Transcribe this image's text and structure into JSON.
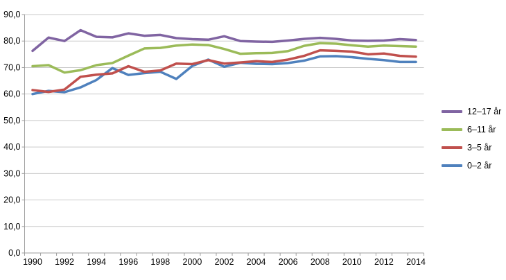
{
  "chart_data": {
    "type": "line",
    "title": "",
    "xlabel": "",
    "ylabel": "",
    "x": [
      1990,
      1991,
      1992,
      1993,
      1994,
      1995,
      1996,
      1997,
      1998,
      1999,
      2000,
      2001,
      2002,
      2003,
      2004,
      2005,
      2006,
      2007,
      2008,
      2009,
      2010,
      2011,
      2012,
      2013,
      2014
    ],
    "x_tick_labels": [
      "1990",
      "1992",
      "1994",
      "1996",
      "1998",
      "2000",
      "2002",
      "2004",
      "2006",
      "2008",
      "2010",
      "2012",
      "2014"
    ],
    "y_tick_labels": [
      "90,0",
      "80,0",
      "70,0",
      "60,0",
      "50,0",
      "40,0",
      "30,0",
      "20,0",
      "10,0",
      "0,0"
    ],
    "ylim": [
      0,
      90
    ],
    "y_tick_step": 10,
    "grid": "horizontal",
    "legend_position": "right",
    "colors": {
      "gridline": "#C9C9C9",
      "axis": "#9E9E9E",
      "tick_text": "#000000",
      "background": "#FFFFFF"
    },
    "series": [
      {
        "name": "12–17 år",
        "color": "#8064A2",
        "values": [
          76.3,
          81.3,
          80.0,
          84.1,
          81.6,
          81.4,
          82.9,
          82.0,
          82.3,
          81.1,
          80.7,
          80.5,
          81.8,
          80.0,
          79.8,
          79.7,
          80.2,
          80.8,
          81.2,
          80.8,
          80.2,
          80.1,
          80.2,
          80.7,
          80.4
        ]
      },
      {
        "name": "6–11 år",
        "color": "#9BBB59",
        "values": [
          70.5,
          70.9,
          68.1,
          69.0,
          70.9,
          71.7,
          74.5,
          77.2,
          77.4,
          78.3,
          78.7,
          78.5,
          77.0,
          75.2,
          75.4,
          75.5,
          76.2,
          78.2,
          79.2,
          79.0,
          78.4,
          77.9,
          78.3,
          78.1,
          77.9
        ]
      },
      {
        "name": "3–5 år",
        "color": "#C0504D",
        "values": [
          61.5,
          60.8,
          61.7,
          66.5,
          67.3,
          67.8,
          70.5,
          68.4,
          68.9,
          71.5,
          71.3,
          72.8,
          71.5,
          71.9,
          72.4,
          72.1,
          73.0,
          74.4,
          76.5,
          76.3,
          76.0,
          75.0,
          75.3,
          74.4,
          74.1
        ]
      },
      {
        "name": "0–2 år",
        "color": "#4F81BD",
        "values": [
          60.0,
          61.2,
          60.7,
          62.5,
          65.3,
          69.8,
          67.2,
          67.9,
          68.4,
          65.7,
          70.6,
          73.0,
          70.3,
          71.8,
          71.4,
          71.3,
          71.7,
          72.6,
          74.2,
          74.3,
          73.9,
          73.3,
          72.8,
          72.1,
          72.1
        ]
      }
    ]
  }
}
